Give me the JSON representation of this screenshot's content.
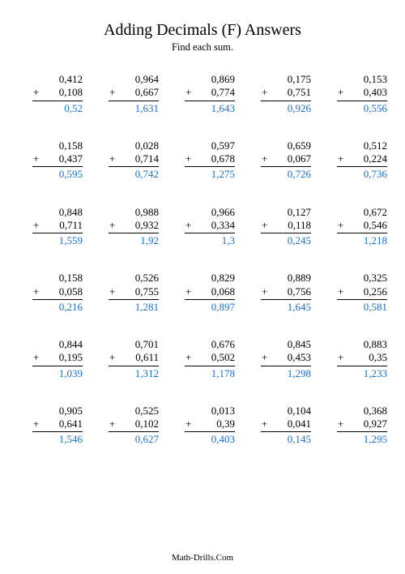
{
  "title": "Adding Decimals (F) Answers",
  "subtitle": "Find each sum.",
  "footer": "Math-Drills.Com",
  "operator": "+",
  "answer_color": "#1a6fc9",
  "text_color": "#000000",
  "problems": [
    [
      {
        "a": "0,412",
        "b": "0,108",
        "sum": "0,52"
      },
      {
        "a": "0,964",
        "b": "0,667",
        "sum": "1,631"
      },
      {
        "a": "0,869",
        "b": "0,774",
        "sum": "1,643"
      },
      {
        "a": "0,175",
        "b": "0,751",
        "sum": "0,926"
      },
      {
        "a": "0,153",
        "b": "0,403",
        "sum": "0,556"
      }
    ],
    [
      {
        "a": "0,158",
        "b": "0,437",
        "sum": "0,595"
      },
      {
        "a": "0,028",
        "b": "0,714",
        "sum": "0,742"
      },
      {
        "a": "0,597",
        "b": "0,678",
        "sum": "1,275"
      },
      {
        "a": "0,659",
        "b": "0,067",
        "sum": "0,726"
      },
      {
        "a": "0,512",
        "b": "0,224",
        "sum": "0,736"
      }
    ],
    [
      {
        "a": "0,848",
        "b": "0,711",
        "sum": "1,559"
      },
      {
        "a": "0,988",
        "b": "0,932",
        "sum": "1,92"
      },
      {
        "a": "0,966",
        "b": "0,334",
        "sum": "1,3"
      },
      {
        "a": "0,127",
        "b": "0,118",
        "sum": "0,245"
      },
      {
        "a": "0,672",
        "b": "0,546",
        "sum": "1,218"
      }
    ],
    [
      {
        "a": "0,158",
        "b": "0,058",
        "sum": "0,216"
      },
      {
        "a": "0,526",
        "b": "0,755",
        "sum": "1,281"
      },
      {
        "a": "0,829",
        "b": "0,068",
        "sum": "0,897"
      },
      {
        "a": "0,889",
        "b": "0,756",
        "sum": "1,645"
      },
      {
        "a": "0,325",
        "b": "0,256",
        "sum": "0,581"
      }
    ],
    [
      {
        "a": "0,844",
        "b": "0,195",
        "sum": "1,039"
      },
      {
        "a": "0,701",
        "b": "0,611",
        "sum": "1,312"
      },
      {
        "a": "0,676",
        "b": "0,502",
        "sum": "1,178"
      },
      {
        "a": "0,845",
        "b": "0,453",
        "sum": "1,298"
      },
      {
        "a": "0,883",
        "b": "0,35",
        "sum": "1,233"
      }
    ],
    [
      {
        "a": "0,905",
        "b": "0,641",
        "sum": "1,546"
      },
      {
        "a": "0,525",
        "b": "0,102",
        "sum": "0,627"
      },
      {
        "a": "0,013",
        "b": "0,39",
        "sum": "0,403"
      },
      {
        "a": "0,104",
        "b": "0,041",
        "sum": "0,145"
      },
      {
        "a": "0,368",
        "b": "0,927",
        "sum": "1,295"
      }
    ]
  ]
}
